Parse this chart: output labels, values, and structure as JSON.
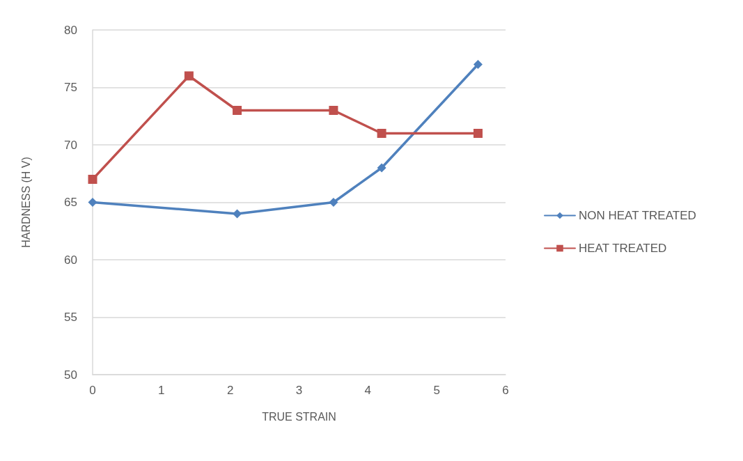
{
  "chart_data": {
    "type": "line",
    "xlabel": "TRUE STRAIN",
    "ylabel": "HARDNESS (H V)",
    "xlim": [
      0,
      6
    ],
    "xticks": [
      0,
      1,
      2,
      3,
      4,
      5,
      6
    ],
    "ylim": [
      50,
      80
    ],
    "yticks": [
      50,
      55,
      60,
      65,
      70,
      75,
      80
    ],
    "grid": "y",
    "legend": "right",
    "line_style": "solid",
    "series": [
      {
        "name": "NON HEAT TREATED",
        "color": "#4f81bd",
        "marker": "diamond",
        "x": [
          0,
          2.1,
          3.5,
          4.2,
          5.6
        ],
        "values": [
          65,
          64,
          65,
          68,
          77
        ]
      },
      {
        "name": "HEAT TREATED",
        "color": "#c0504d",
        "marker": "square",
        "x": [
          0,
          1.4,
          2.1,
          3.5,
          4.2,
          5.6
        ],
        "values": [
          67,
          76,
          73,
          73,
          71,
          71
        ]
      }
    ]
  }
}
